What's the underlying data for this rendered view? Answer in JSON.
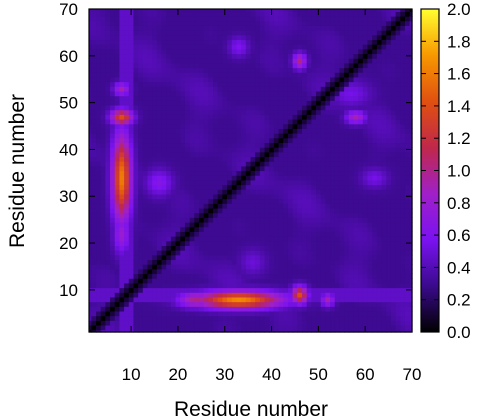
{
  "chart_data": {
    "type": "heatmap",
    "title": "",
    "xlabel": "Residue number",
    "ylabel": "Residue number",
    "xlim": [
      1,
      70
    ],
    "ylim": [
      1,
      70
    ],
    "x_ticks": [
      "10",
      "20",
      "30",
      "40",
      "50",
      "60",
      "70"
    ],
    "y_ticks": [
      "10",
      "20",
      "30",
      "40",
      "50",
      "60",
      "70"
    ],
    "colorbar": {
      "range": [
        0.0,
        2.0
      ],
      "ticks": [
        "0.0",
        "0.2",
        "0.4",
        "0.6",
        "0.8",
        "1.0",
        "1.2",
        "1.4",
        "1.6",
        "1.8",
        "2.0"
      ],
      "colormap": [
        "#000000",
        "#3a0a8c",
        "#7a12f0",
        "#a020c8",
        "#c0284a",
        "#e05010",
        "#f89800",
        "#ffff30"
      ]
    },
    "background_value": 0.3,
    "diagonal_value": 0.0,
    "features": [
      {
        "x": 8,
        "y": 34,
        "sx": 1.4,
        "sy": 6.5,
        "value": 1.6
      },
      {
        "x": 8,
        "y": 47,
        "sx": 1.6,
        "sy": 1.2,
        "value": 1.4
      },
      {
        "x": 8,
        "y": 53,
        "sx": 1.2,
        "sy": 1.0,
        "value": 0.9
      },
      {
        "x": 8,
        "y": 22,
        "sx": 1.2,
        "sy": 3.0,
        "value": 0.8
      },
      {
        "x": 33,
        "y": 8,
        "sx": 6.5,
        "sy": 1.3,
        "value": 1.65
      },
      {
        "x": 24,
        "y": 8,
        "sx": 3.0,
        "sy": 1.2,
        "value": 1.0
      },
      {
        "x": 46,
        "y": 9,
        "sx": 1.2,
        "sy": 1.3,
        "value": 1.4
      },
      {
        "x": 52,
        "y": 8,
        "sx": 1.0,
        "sy": 1.0,
        "value": 0.9
      },
      {
        "x": 46,
        "y": 59,
        "sx": 1.0,
        "sy": 1.2,
        "value": 1.0
      },
      {
        "x": 58,
        "y": 47,
        "sx": 1.5,
        "sy": 1.0,
        "value": 0.9
      },
      {
        "x": 16,
        "y": 33,
        "sx": 2.0,
        "sy": 2.0,
        "value": 0.65
      },
      {
        "x": 33,
        "y": 62,
        "sx": 1.5,
        "sy": 1.5,
        "value": 0.6
      },
      {
        "x": 57,
        "y": 52,
        "sx": 3.0,
        "sy": 2.0,
        "value": 0.55
      },
      {
        "x": 62,
        "y": 34,
        "sx": 2.0,
        "sy": 1.5,
        "value": 0.55
      },
      {
        "x": 36,
        "y": 16,
        "sx": 2.0,
        "sy": 2.0,
        "value": 0.5
      }
    ]
  }
}
